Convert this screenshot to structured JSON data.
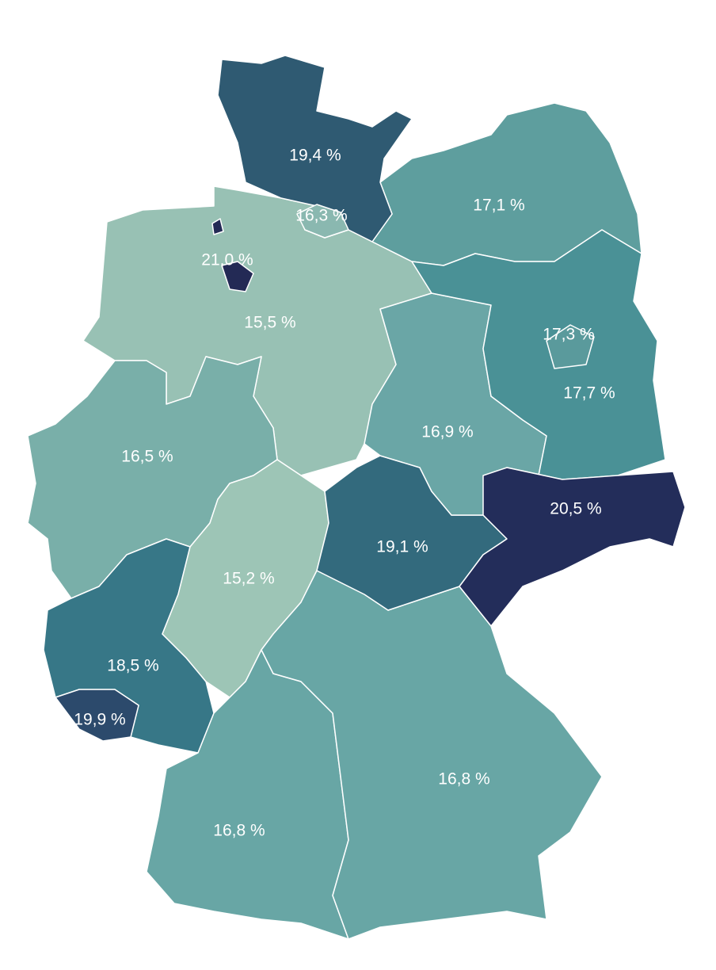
{
  "chart_data": {
    "type": "choropleth",
    "values": [
      19.4,
      16.3,
      17.1,
      21.0,
      15.5,
      17.3,
      17.7,
      16.9,
      16.5,
      20.5,
      19.1,
      15.2,
      18.5,
      19.9,
      16.8,
      16.8
    ],
    "value_labels": [
      "19,4 %",
      "16,3 %",
      "17,1 %",
      "21,0 %",
      "15,5 %",
      "17,3 %",
      "17,7 %",
      "16,9 %",
      "16,5 %",
      "20,5 %",
      "19,1 %",
      "15,2 %",
      "18,5 %",
      "19,9 %",
      "16,8 %",
      "16,8 %"
    ],
    "colors": [
      "#2f5a72",
      "#8ab8b0",
      "#5e9e9e",
      "#232a55",
      "#98c1b4",
      "#5a9a9c",
      "#4a9196",
      "#6aa6a6",
      "#79afa9",
      "#232d5a",
      "#336a7d",
      "#9dc5b6",
      "#377787",
      "#2c4a6c",
      "#68a6a5",
      "#68a6a5"
    ]
  }
}
